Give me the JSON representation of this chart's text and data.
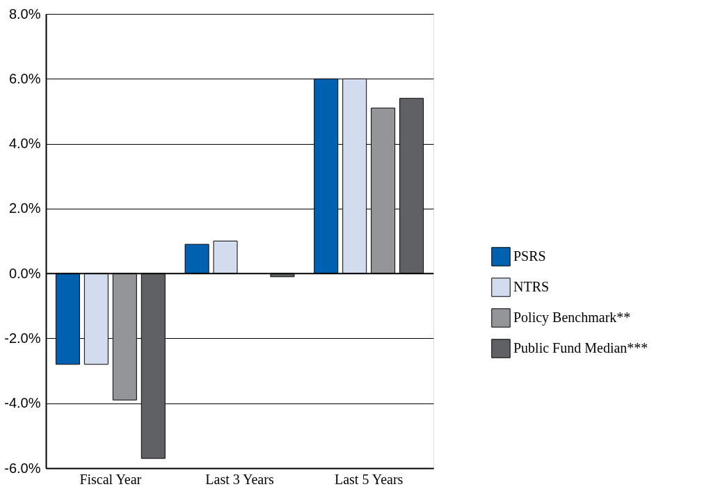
{
  "chart_data": {
    "type": "bar",
    "categories": [
      "Fiscal Year",
      "Last 3 Years",
      "Last 5 Years"
    ],
    "series": [
      {
        "name": "PSRS",
        "color": "#0061b0",
        "values": [
          -2.8,
          0.9,
          6.0
        ]
      },
      {
        "name": "NTRS",
        "color": "#d2dcee",
        "values": [
          -2.8,
          1.0,
          6.0
        ]
      },
      {
        "name": "Policy Benchmark**",
        "color": "#939598",
        "values": [
          -3.9,
          null,
          5.1
        ]
      },
      {
        "name": "Public Fund Median***",
        "color": "#606164",
        "values": [
          -5.7,
          -0.1,
          5.4
        ]
      }
    ],
    "ylim": [
      -6,
      8
    ],
    "yticks": [
      {
        "value": -6,
        "label": "-6.0%"
      },
      {
        "value": -4,
        "label": "-4.0%"
      },
      {
        "value": -2,
        "label": "-2.0%"
      },
      {
        "value": 0,
        "label": "0.0%"
      },
      {
        "value": 2,
        "label": "2.0%"
      },
      {
        "value": 4,
        "label": "4.0%"
      },
      {
        "value": 6,
        "label": "6.0%"
      },
      {
        "value": 8,
        "label": "8.0%"
      }
    ],
    "ref_lines": [
      {
        "axis": "y",
        "value": 0,
        "color": "#000000"
      }
    ],
    "grid": "y",
    "legend": "right"
  }
}
